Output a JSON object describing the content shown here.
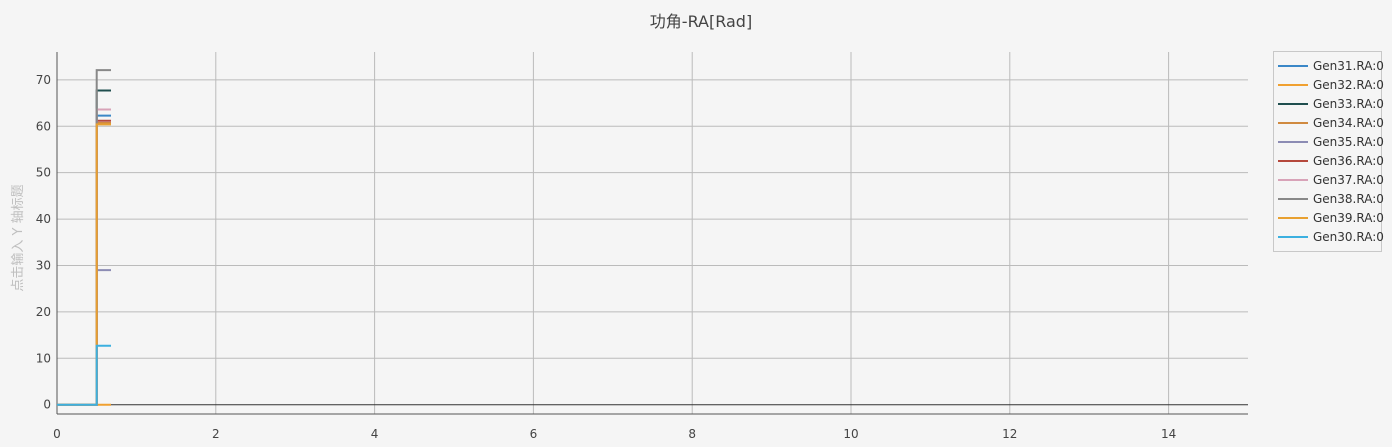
{
  "chart_data": {
    "type": "line",
    "title": "功角-RA[Rad]",
    "xlabel": "",
    "ylabel": "点击输入 Y 轴标题",
    "xlim": [
      0,
      15
    ],
    "ylim": [
      -2,
      76
    ],
    "x_ticks": [
      0,
      2,
      4,
      6,
      8,
      10,
      12,
      14
    ],
    "y_ticks": [
      0,
      10,
      20,
      30,
      40,
      50,
      60,
      70
    ],
    "grid": true,
    "legend_position": "right",
    "series": [
      {
        "name": "Gen31.RA:0",
        "color": "#3a87c7",
        "points": [
          [
            0,
            0
          ],
          [
            0.5,
            0
          ],
          [
            0.5,
            62.3
          ],
          [
            0.68,
            62.3
          ]
        ]
      },
      {
        "name": "Gen32.RA:0",
        "color": "#f0a030",
        "points": [
          [
            0,
            0
          ],
          [
            0.5,
            0
          ],
          [
            0.5,
            0
          ],
          [
            0.68,
            0
          ]
        ]
      },
      {
        "name": "Gen33.RA:0",
        "color": "#1f4e4e",
        "points": [
          [
            0,
            0
          ],
          [
            0.5,
            0
          ],
          [
            0.5,
            67.7
          ],
          [
            0.68,
            67.7
          ]
        ]
      },
      {
        "name": "Gen34.RA:0",
        "color": "#d08a40",
        "points": [
          [
            0,
            0
          ],
          [
            0.5,
            0
          ],
          [
            0.5,
            60.7
          ],
          [
            0.68,
            60.7
          ]
        ]
      },
      {
        "name": "Gen35.RA:0",
        "color": "#8c8cb4",
        "points": [
          [
            0,
            0
          ],
          [
            0.5,
            0
          ],
          [
            0.5,
            29
          ],
          [
            0.68,
            29
          ]
        ]
      },
      {
        "name": "Gen36.RA:0",
        "color": "#b5483c",
        "points": [
          [
            0,
            0
          ],
          [
            0.5,
            0
          ],
          [
            0.5,
            61.2
          ],
          [
            0.68,
            61.2
          ]
        ]
      },
      {
        "name": "Gen37.RA:0",
        "color": "#d8a3b8",
        "points": [
          [
            0,
            0
          ],
          [
            0.5,
            0
          ],
          [
            0.5,
            63.6
          ],
          [
            0.68,
            63.6
          ]
        ]
      },
      {
        "name": "Gen38.RA:0",
        "color": "#888888",
        "points": [
          [
            0,
            0
          ],
          [
            0.5,
            0
          ],
          [
            0.5,
            72.1
          ],
          [
            0.68,
            72.1
          ]
        ]
      },
      {
        "name": "Gen39.RA:0",
        "color": "#e8a030",
        "points": [
          [
            0,
            0
          ],
          [
            0.5,
            0
          ],
          [
            0.5,
            60.4
          ],
          [
            0.68,
            60.4
          ]
        ]
      },
      {
        "name": "Gen30.RA:0",
        "color": "#3cb0e0",
        "points": [
          [
            0,
            0
          ],
          [
            0.5,
            0
          ],
          [
            0.5,
            12.7
          ],
          [
            0.68,
            12.7
          ]
        ]
      }
    ]
  }
}
